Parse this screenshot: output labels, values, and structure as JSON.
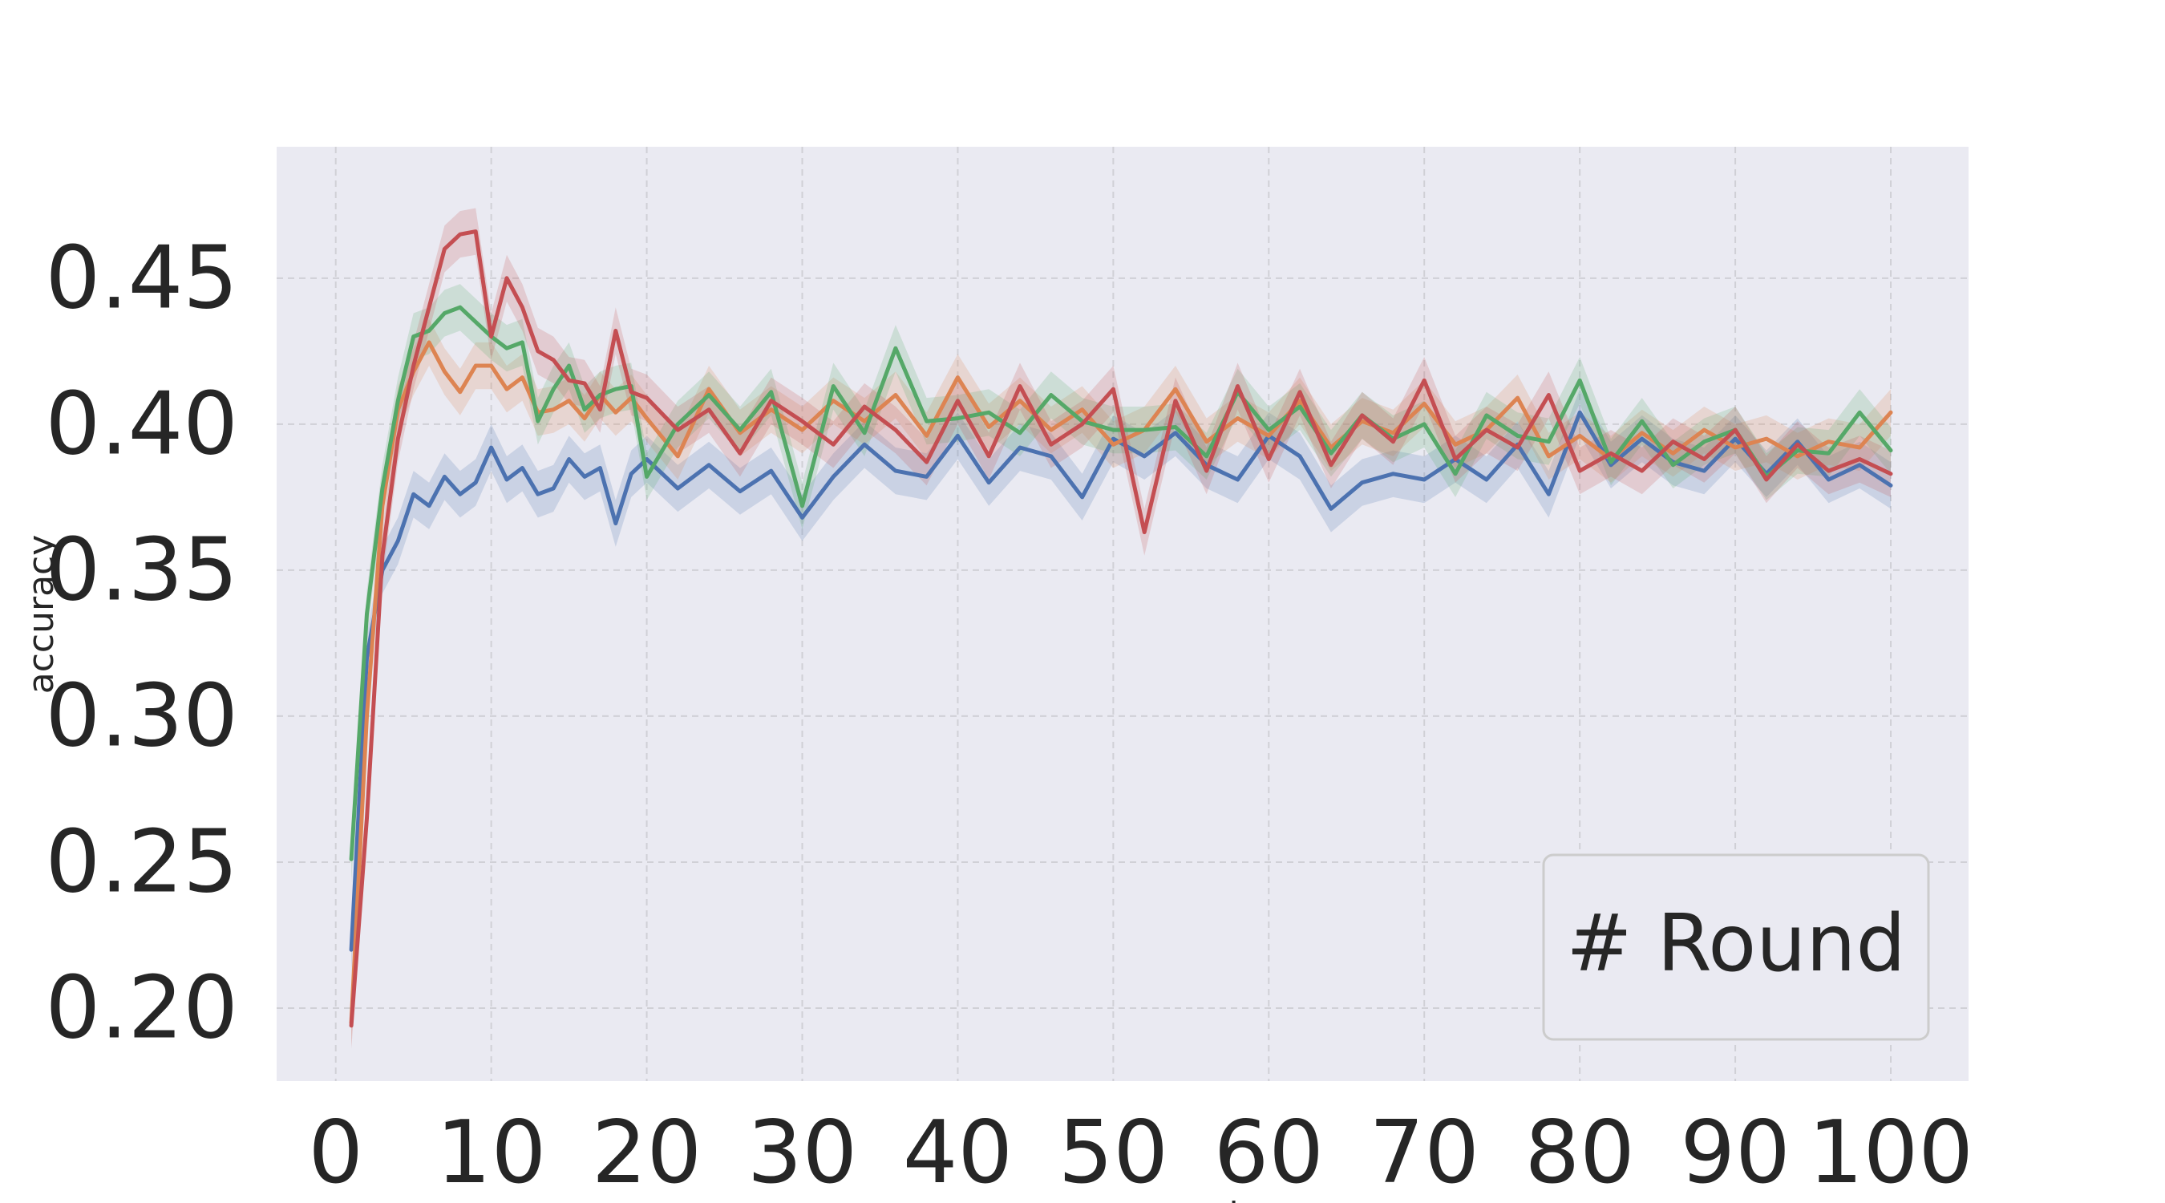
{
  "chart_data": {
    "type": "line",
    "title": "",
    "xlabel": "server_round",
    "ylabel": "accuracy",
    "xlim": [
      -3.8,
      105
    ],
    "ylim": [
      0.175,
      0.495
    ],
    "xticks": [
      0,
      10,
      20,
      30,
      40,
      50,
      60,
      70,
      80,
      90,
      100
    ],
    "xtick_labels": [
      "0",
      "10",
      "20",
      "30",
      "40",
      "50",
      "60",
      "70",
      "80",
      "90",
      "100"
    ],
    "yticks": [
      0.2,
      0.25,
      0.3,
      0.35,
      0.4,
      0.45
    ],
    "ytick_labels": [
      "0.20",
      "0.25",
      "0.30",
      "0.35",
      "0.40",
      "0.45"
    ],
    "grid": true,
    "legend": {
      "title": "# Round",
      "placement": "bottom-right"
    },
    "colors": {
      "background": "#eaeaf2",
      "grid": "#d0d0d6",
      "text": "#262626"
    },
    "band_halfwidth": 0.008,
    "series": [
      {
        "color": "#4c72b0",
        "x": [
          1,
          2,
          3,
          4,
          5,
          6,
          7,
          8,
          9,
          10,
          11,
          12,
          13,
          14,
          15,
          16,
          17,
          18,
          19,
          20,
          22,
          24,
          26,
          28,
          30,
          32,
          34,
          36,
          38,
          40,
          42,
          44,
          46,
          48,
          50,
          52,
          54,
          56,
          58,
          60,
          62,
          64,
          66,
          68,
          70,
          72,
          74,
          76,
          78,
          80,
          82,
          84,
          86,
          88,
          90,
          92,
          94,
          96,
          98,
          100
        ],
        "y": [
          0.22,
          0.32,
          0.35,
          0.36,
          0.376,
          0.372,
          0.382,
          0.376,
          0.38,
          0.392,
          0.381,
          0.385,
          0.376,
          0.378,
          0.388,
          0.382,
          0.385,
          0.366,
          0.383,
          0.388,
          0.378,
          0.386,
          0.377,
          0.384,
          0.368,
          0.382,
          0.393,
          0.384,
          0.382,
          0.396,
          0.38,
          0.392,
          0.389,
          0.375,
          0.395,
          0.389,
          0.397,
          0.386,
          0.381,
          0.396,
          0.389,
          0.371,
          0.38,
          0.383,
          0.381,
          0.388,
          0.381,
          0.393,
          0.376,
          0.404,
          0.386,
          0.395,
          0.387,
          0.384,
          0.395,
          0.383,
          0.394,
          0.381,
          0.386,
          0.379
        ]
      },
      {
        "color": "#dd8452",
        "x": [
          1,
          2,
          3,
          4,
          5,
          6,
          7,
          8,
          9,
          10,
          11,
          12,
          13,
          14,
          15,
          16,
          17,
          18,
          19,
          20,
          22,
          24,
          26,
          28,
          30,
          32,
          34,
          36,
          38,
          40,
          42,
          44,
          46,
          48,
          50,
          52,
          54,
          56,
          58,
          60,
          62,
          64,
          66,
          68,
          70,
          72,
          74,
          76,
          78,
          80,
          82,
          84,
          86,
          88,
          90,
          92,
          94,
          96,
          98,
          100
        ],
        "y": [
          0.195,
          0.3,
          0.372,
          0.405,
          0.418,
          0.428,
          0.418,
          0.411,
          0.42,
          0.42,
          0.412,
          0.416,
          0.404,
          0.405,
          0.408,
          0.402,
          0.41,
          0.404,
          0.409,
          0.402,
          0.389,
          0.412,
          0.397,
          0.405,
          0.398,
          0.408,
          0.401,
          0.41,
          0.396,
          0.416,
          0.399,
          0.408,
          0.398,
          0.405,
          0.393,
          0.398,
          0.412,
          0.394,
          0.402,
          0.396,
          0.408,
          0.392,
          0.401,
          0.397,
          0.407,
          0.393,
          0.398,
          0.409,
          0.389,
          0.396,
          0.388,
          0.397,
          0.39,
          0.398,
          0.392,
          0.395,
          0.389,
          0.394,
          0.392,
          0.404
        ]
      },
      {
        "color": "#55a868",
        "x": [
          1,
          2,
          3,
          4,
          5,
          6,
          7,
          8,
          9,
          10,
          11,
          12,
          13,
          14,
          15,
          16,
          17,
          18,
          19,
          20,
          22,
          24,
          26,
          28,
          30,
          32,
          34,
          36,
          38,
          40,
          42,
          44,
          46,
          48,
          50,
          52,
          54,
          56,
          58,
          60,
          62,
          64,
          66,
          68,
          70,
          72,
          74,
          76,
          78,
          80,
          82,
          84,
          86,
          88,
          90,
          92,
          94,
          96,
          98,
          100
        ],
        "y": [
          0.251,
          0.335,
          0.378,
          0.408,
          0.43,
          0.432,
          0.438,
          0.44,
          0.435,
          0.43,
          0.426,
          0.428,
          0.401,
          0.412,
          0.42,
          0.405,
          0.41,
          0.412,
          0.413,
          0.382,
          0.4,
          0.41,
          0.398,
          0.411,
          0.372,
          0.413,
          0.397,
          0.426,
          0.401,
          0.402,
          0.404,
          0.397,
          0.41,
          0.401,
          0.398,
          0.398,
          0.399,
          0.389,
          0.411,
          0.398,
          0.406,
          0.39,
          0.403,
          0.395,
          0.4,
          0.383,
          0.403,
          0.396,
          0.394,
          0.415,
          0.387,
          0.401,
          0.386,
          0.394,
          0.398,
          0.382,
          0.391,
          0.39,
          0.404,
          0.391
        ]
      },
      {
        "color": "#c44e52",
        "x": [
          1,
          2,
          3,
          4,
          5,
          6,
          7,
          8,
          9,
          10,
          11,
          12,
          13,
          14,
          15,
          16,
          17,
          18,
          19,
          20,
          22,
          24,
          26,
          28,
          30,
          32,
          34,
          36,
          38,
          40,
          42,
          44,
          46,
          48,
          50,
          52,
          54,
          56,
          58,
          60,
          62,
          64,
          66,
          68,
          70,
          72,
          74,
          76,
          78,
          80,
          82,
          84,
          86,
          88,
          90,
          92,
          94,
          96,
          98,
          100
        ],
        "y": [
          0.194,
          0.265,
          0.355,
          0.395,
          0.42,
          0.44,
          0.46,
          0.465,
          0.466,
          0.43,
          0.45,
          0.44,
          0.425,
          0.422,
          0.415,
          0.414,
          0.405,
          0.432,
          0.411,
          0.409,
          0.398,
          0.405,
          0.39,
          0.408,
          0.401,
          0.393,
          0.406,
          0.398,
          0.387,
          0.408,
          0.389,
          0.413,
          0.393,
          0.4,
          0.412,
          0.363,
          0.408,
          0.384,
          0.413,
          0.388,
          0.411,
          0.386,
          0.403,
          0.394,
          0.415,
          0.388,
          0.398,
          0.392,
          0.41,
          0.384,
          0.39,
          0.384,
          0.394,
          0.388,
          0.398,
          0.381,
          0.393,
          0.384,
          0.388,
          0.383
        ]
      }
    ]
  }
}
